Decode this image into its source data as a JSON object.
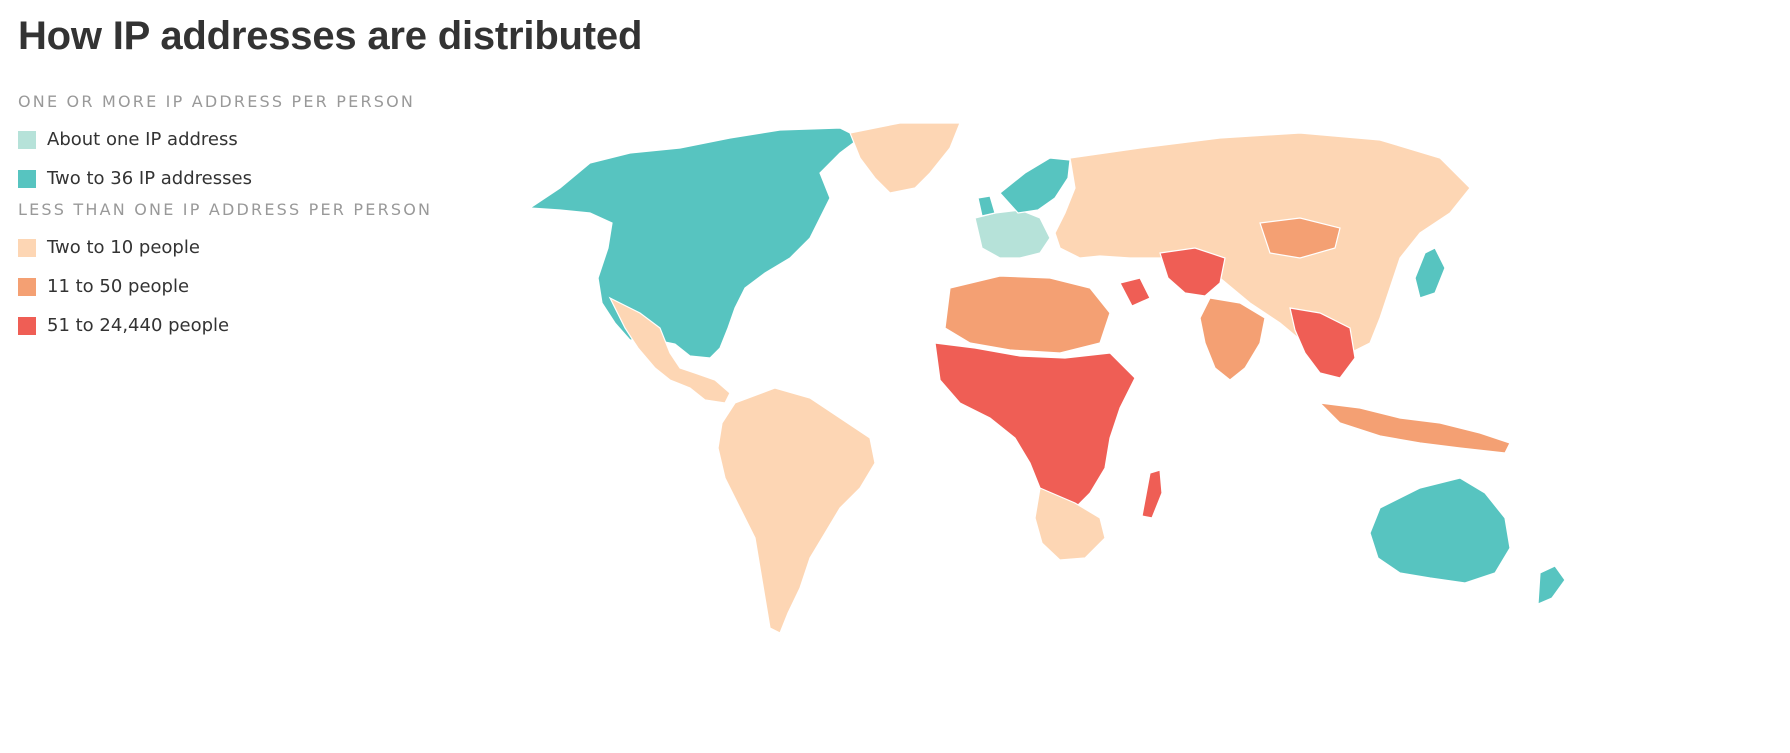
{
  "title": "How IP addresses are distributed",
  "legend": {
    "group_one": {
      "label": "ONE OR MORE IP ADDRESS PER PERSON",
      "items": [
        {
          "label": "About one IP address",
          "color": "#b6e2d9"
        },
        {
          "label": "Two to 36 IP addresses",
          "color": "#57c4c0"
        }
      ]
    },
    "group_two": {
      "label": "LESS THAN ONE IP ADDRESS PER PERSON",
      "items": [
        {
          "label": "Two to 10 people",
          "color": "#fdd6b4"
        },
        {
          "label": "11 to 50 people",
          "color": "#f4a073"
        },
        {
          "label": "51 to 24,440 people",
          "color": "#ef5e55"
        }
      ]
    }
  },
  "colors": {
    "no_data": "#cccccc",
    "background": "#ffffff"
  },
  "regions": [
    {
      "name": "north-america",
      "category": "Two to 36 IP addresses"
    },
    {
      "name": "greenland",
      "category": "Two to 10 people"
    },
    {
      "name": "mexico-central-america",
      "category": "Two to 10 people"
    },
    {
      "name": "south-america",
      "category": "Two to 10 people"
    },
    {
      "name": "western-europe",
      "category": "About one IP address"
    },
    {
      "name": "scandinavia-uk",
      "category": "Two to 36 IP addresses"
    },
    {
      "name": "russia-asia",
      "category": "Two to 10 people"
    },
    {
      "name": "mongolia",
      "category": "11 to 50 people"
    },
    {
      "name": "south-asia",
      "category": "11 to 50 people"
    },
    {
      "name": "afghanistan-pakistan",
      "category": "51 to 24,440 people"
    },
    {
      "name": "north-africa",
      "category": "11 to 50 people"
    },
    {
      "name": "central-africa",
      "category": "51 to 24,440 people"
    },
    {
      "name": "southern-africa",
      "category": "Two to 10 people"
    },
    {
      "name": "madagascar",
      "category": "51 to 24,440 people"
    },
    {
      "name": "southeast-asia",
      "category": "51 to 24,440 people"
    },
    {
      "name": "indonesia",
      "category": "11 to 50 people"
    },
    {
      "name": "japan-korea",
      "category": "Two to 36 IP addresses"
    },
    {
      "name": "australia",
      "category": "Two to 36 IP addresses"
    },
    {
      "name": "new-zealand",
      "category": "Two to 36 IP addresses"
    }
  ]
}
